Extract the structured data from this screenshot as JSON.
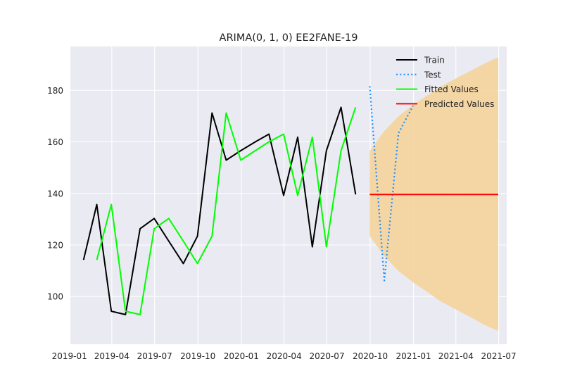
{
  "chart_data": {
    "type": "line",
    "title": "ARIMA(0, 1, 0) EE2FANE-19",
    "xlabel": "",
    "ylabel": "",
    "x_axis_type": "date",
    "xlim": [
      "2019-01-03",
      "2021-07-18"
    ],
    "ylim": [
      81.5,
      197.0
    ],
    "x_ticks": [
      {
        "date": "2019-01-01",
        "label": "2019-01"
      },
      {
        "date": "2019-04-01",
        "label": "2019-04"
      },
      {
        "date": "2019-07-01",
        "label": "2019-07"
      },
      {
        "date": "2019-10-01",
        "label": "2019-10"
      },
      {
        "date": "2020-01-01",
        "label": "2020-01"
      },
      {
        "date": "2020-04-01",
        "label": "2020-04"
      },
      {
        "date": "2020-07-01",
        "label": "2020-07"
      },
      {
        "date": "2020-10-01",
        "label": "2020-10"
      },
      {
        "date": "2021-01-01",
        "label": "2021-01"
      },
      {
        "date": "2021-04-01",
        "label": "2021-04"
      },
      {
        "date": "2021-07-01",
        "label": "2021-07"
      }
    ],
    "y_ticks": [
      100,
      120,
      140,
      160,
      180
    ],
    "grid": true,
    "legend_position": "top-right",
    "colors": {
      "plot_background": "#eaeaf2",
      "grid": "#ffffff",
      "train": "#000000",
      "test": "#1e90ff",
      "fitted": "#00ff00",
      "predicted": "#ff0000",
      "confidence_band": "#f5d49c"
    },
    "series": [
      {
        "name": "Train",
        "style": "solid",
        "color_key": "train",
        "points": [
          {
            "x": "2019-01-31",
            "y": 114.2
          },
          {
            "x": "2019-02-28",
            "y": 135.7
          },
          {
            "x": "2019-03-31",
            "y": 94.3
          },
          {
            "x": "2019-04-30",
            "y": 93.0
          },
          {
            "x": "2019-05-31",
            "y": 126.3
          },
          {
            "x": "2019-06-30",
            "y": 130.3
          },
          {
            "x": "2019-07-31",
            "y": 121.5
          },
          {
            "x": "2019-08-31",
            "y": 112.8
          },
          {
            "x": "2019-09-30",
            "y": 123.4
          },
          {
            "x": "2019-10-31",
            "y": 171.2
          },
          {
            "x": "2019-11-30",
            "y": 152.9
          },
          {
            "x": "2019-12-31",
            "y": 156.6
          },
          {
            "x": "2020-01-31",
            "y": 160.0
          },
          {
            "x": "2020-02-29",
            "y": 163.0
          },
          {
            "x": "2020-03-31",
            "y": 139.2
          },
          {
            "x": "2020-04-30",
            "y": 161.8
          },
          {
            "x": "2020-05-31",
            "y": 119.3
          },
          {
            "x": "2020-06-30",
            "y": 156.6
          },
          {
            "x": "2020-07-31",
            "y": 173.4
          },
          {
            "x": "2020-08-31",
            "y": 139.6
          }
        ]
      },
      {
        "name": "Test",
        "style": "dotted",
        "color_key": "test",
        "points": [
          {
            "x": "2020-09-30",
            "y": 181.6
          },
          {
            "x": "2020-10-31",
            "y": 106.2
          },
          {
            "x": "2020-11-30",
            "y": 163.3
          },
          {
            "x": "2020-12-31",
            "y": 174.0
          }
        ]
      },
      {
        "name": "Fitted Values",
        "style": "solid",
        "color_key": "fitted",
        "points": [
          {
            "x": "2019-02-28",
            "y": 114.2
          },
          {
            "x": "2019-03-31",
            "y": 135.7
          },
          {
            "x": "2019-04-30",
            "y": 94.3
          },
          {
            "x": "2019-05-31",
            "y": 93.0
          },
          {
            "x": "2019-06-30",
            "y": 126.3
          },
          {
            "x": "2019-07-31",
            "y": 130.3
          },
          {
            "x": "2019-08-31",
            "y": 121.5
          },
          {
            "x": "2019-09-30",
            "y": 112.8
          },
          {
            "x": "2019-10-31",
            "y": 123.4
          },
          {
            "x": "2019-11-30",
            "y": 171.2
          },
          {
            "x": "2019-12-31",
            "y": 152.9
          },
          {
            "x": "2020-01-31",
            "y": 156.6
          },
          {
            "x": "2020-02-29",
            "y": 160.0
          },
          {
            "x": "2020-03-31",
            "y": 163.0
          },
          {
            "x": "2020-04-30",
            "y": 139.2
          },
          {
            "x": "2020-05-31",
            "y": 161.8
          },
          {
            "x": "2020-06-30",
            "y": 119.3
          },
          {
            "x": "2020-07-31",
            "y": 156.6
          },
          {
            "x": "2020-08-31",
            "y": 173.4
          }
        ]
      },
      {
        "name": "Predicted Values",
        "style": "solid",
        "color_key": "predicted",
        "points": [
          {
            "x": "2020-09-30",
            "y": 139.6
          },
          {
            "x": "2021-06-30",
            "y": 139.6
          }
        ]
      }
    ],
    "confidence_band": {
      "color_key": "confidence_band",
      "points": [
        {
          "x": "2020-09-30",
          "lower": 123.4,
          "upper": 156.5
        },
        {
          "x": "2020-10-31",
          "lower": 115.7,
          "upper": 164.2
        },
        {
          "x": "2020-11-30",
          "lower": 109.9,
          "upper": 169.9
        },
        {
          "x": "2020-12-31",
          "lower": 105.5,
          "upper": 174.4
        },
        {
          "x": "2021-01-31",
          "lower": 101.7,
          "upper": 178.1
        },
        {
          "x": "2021-02-28",
          "lower": 98.1,
          "upper": 181.5
        },
        {
          "x": "2021-03-31",
          "lower": 95.1,
          "upper": 184.5
        },
        {
          "x": "2021-04-30",
          "lower": 92.2,
          "upper": 187.3
        },
        {
          "x": "2021-05-31",
          "lower": 89.1,
          "upper": 190.3
        },
        {
          "x": "2021-06-30",
          "lower": 86.6,
          "upper": 192.8
        }
      ]
    }
  }
}
